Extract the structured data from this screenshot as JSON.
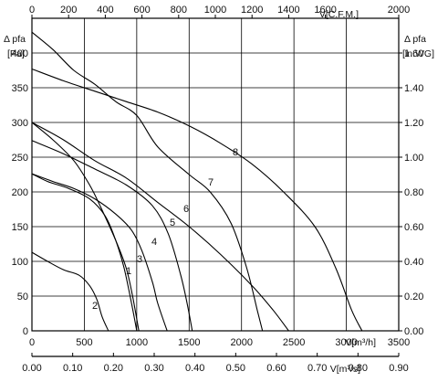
{
  "chart_data": {
    "type": "line",
    "grid": true,
    "axes": {
      "left": {
        "title": "Δ pfa",
        "unit": "[Pa]",
        "ticks": [
          0,
          50,
          100,
          150,
          200,
          250,
          300,
          350,
          400
        ],
        "range": [
          0,
          450
        ]
      },
      "right": {
        "title": "Δ pfa",
        "unit": "[in.WG]",
        "ticks": [
          "0.00",
          "0.20",
          "0.40",
          "0.60",
          "0.80",
          "1.00",
          "1.20",
          "1.40",
          "1.60"
        ],
        "range": [
          0,
          1.8
        ]
      },
      "bottom": {
        "unit": "V[m³/h]",
        "ticks": [
          0,
          500,
          1000,
          1500,
          2000,
          2500,
          3000,
          3500
        ],
        "range": [
          0,
          3500
        ]
      },
      "top": {
        "unit": "V[C.F.M.]",
        "ticks": [
          0,
          200,
          400,
          600,
          800,
          1000,
          1200,
          1400,
          1600,
          2000
        ],
        "range": [
          0,
          2000
        ]
      },
      "bottom2": {
        "unit": "V[m³/s]",
        "ticks": [
          "0.00",
          "0.10",
          "0.20",
          "0.30",
          "0.40",
          "0.50",
          "0.60",
          "0.70",
          "0.80",
          "0.90"
        ],
        "range": [
          0,
          0.9
        ]
      }
    },
    "series": [
      {
        "name": "1",
        "points": [
          [
            0,
            226
          ],
          [
            150,
            215
          ],
          [
            350,
            205
          ],
          [
            550,
            190
          ],
          [
            700,
            165
          ],
          [
            800,
            130
          ],
          [
            880,
            90
          ],
          [
            950,
            40
          ],
          [
            1000,
            0
          ]
        ]
      },
      {
        "name": "2",
        "points": [
          [
            0,
            113
          ],
          [
            150,
            100
          ],
          [
            300,
            88
          ],
          [
            450,
            80
          ],
          [
            550,
            65
          ],
          [
            620,
            45
          ],
          [
            670,
            20
          ],
          [
            730,
            0
          ]
        ]
      },
      {
        "name": "3",
        "points": [
          [
            0,
            300
          ],
          [
            200,
            275
          ],
          [
            400,
            245
          ],
          [
            550,
            210
          ],
          [
            650,
            180
          ],
          [
            800,
            130
          ],
          [
            900,
            90
          ],
          [
            960,
            50
          ],
          [
            1020,
            0
          ]
        ]
      },
      {
        "name": "4",
        "points": [
          [
            0,
            226
          ],
          [
            200,
            215
          ],
          [
            400,
            205
          ],
          [
            600,
            190
          ],
          [
            800,
            168
          ],
          [
            950,
            145
          ],
          [
            1050,
            115
          ],
          [
            1150,
            70
          ],
          [
            1200,
            40
          ],
          [
            1290,
            0
          ]
        ]
      },
      {
        "name": "5",
        "points": [
          [
            0,
            274
          ],
          [
            300,
            255
          ],
          [
            600,
            233
          ],
          [
            900,
            210
          ],
          [
            1150,
            180
          ],
          [
            1300,
            140
          ],
          [
            1420,
            80
          ],
          [
            1480,
            40
          ],
          [
            1530,
            0
          ]
        ]
      },
      {
        "name": "6",
        "points": [
          [
            0,
            300
          ],
          [
            300,
            275
          ],
          [
            600,
            245
          ],
          [
            900,
            220
          ],
          [
            1200,
            185
          ],
          [
            1500,
            150
          ],
          [
            1800,
            110
          ],
          [
            2100,
            65
          ],
          [
            2300,
            30
          ],
          [
            2450,
            0
          ]
        ]
      },
      {
        "name": "7",
        "points": [
          [
            0,
            430
          ],
          [
            200,
            405
          ],
          [
            400,
            375
          ],
          [
            600,
            355
          ],
          [
            800,
            330
          ],
          [
            1000,
            310
          ],
          [
            1200,
            265
          ],
          [
            1500,
            225
          ],
          [
            1700,
            200
          ],
          [
            1900,
            155
          ],
          [
            2050,
            90
          ],
          [
            2150,
            30
          ],
          [
            2200,
            0
          ]
        ]
      },
      {
        "name": "8",
        "points": [
          [
            0,
            377
          ],
          [
            300,
            360
          ],
          [
            600,
            345
          ],
          [
            900,
            330
          ],
          [
            1200,
            315
          ],
          [
            1500,
            295
          ],
          [
            1800,
            270
          ],
          [
            2100,
            240
          ],
          [
            2400,
            200
          ],
          [
            2700,
            150
          ],
          [
            2900,
            90
          ],
          [
            3050,
            30
          ],
          [
            3150,
            0
          ]
        ]
      }
    ]
  }
}
